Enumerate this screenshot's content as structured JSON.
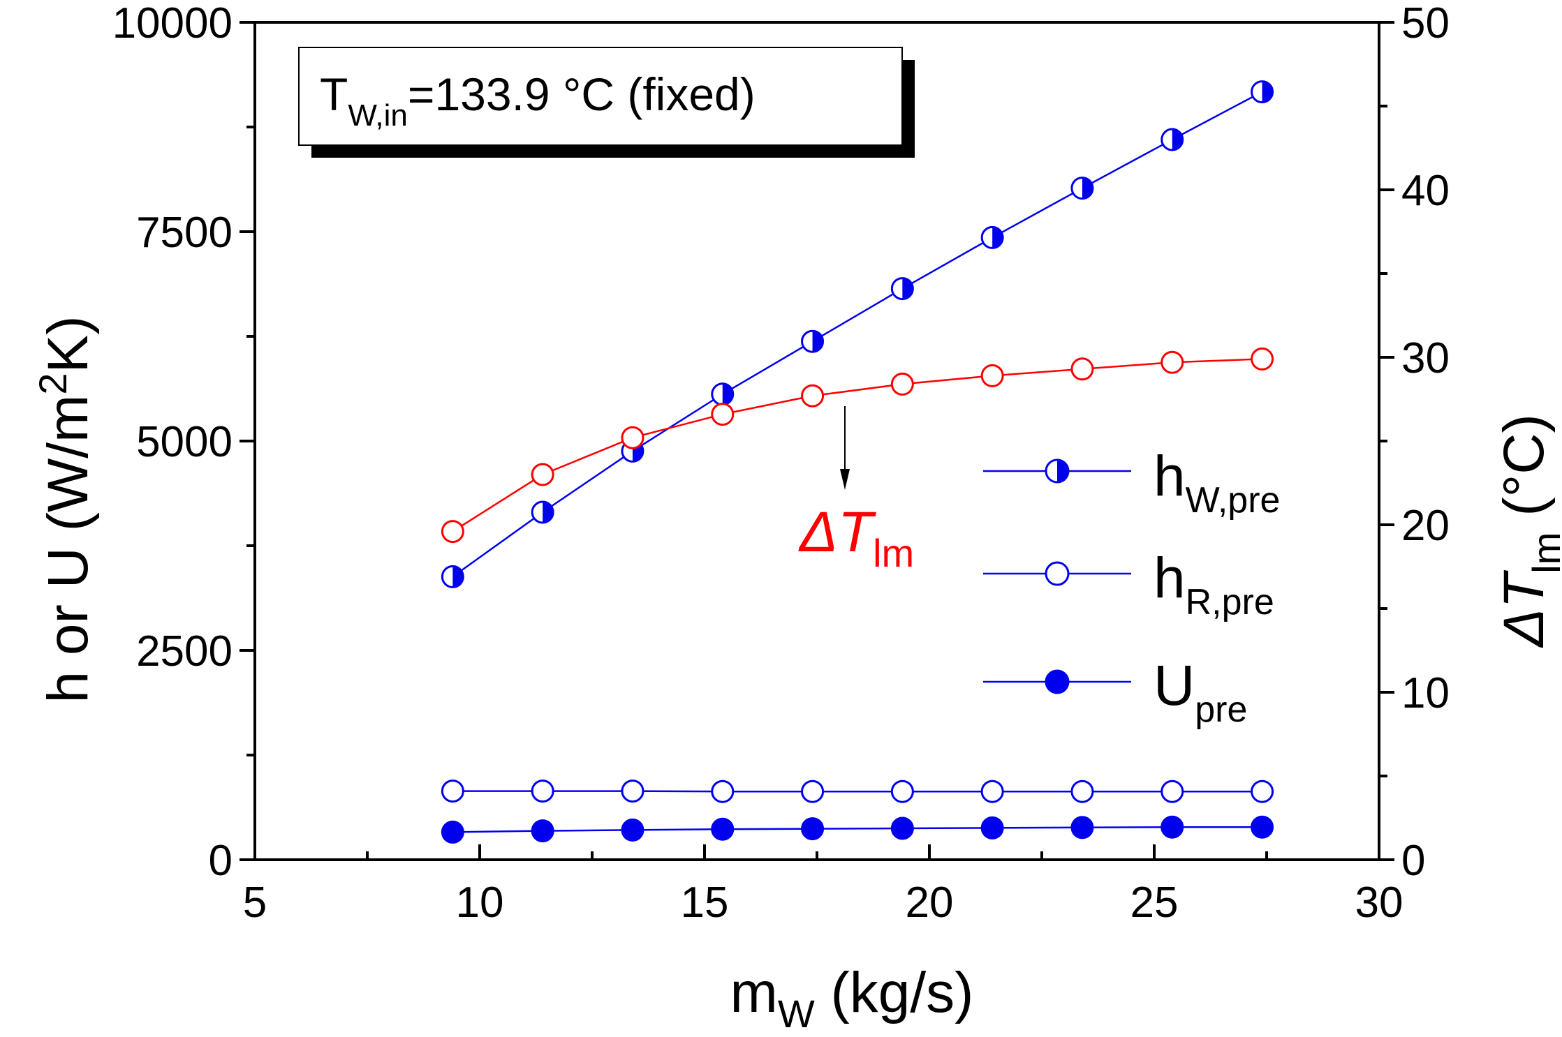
{
  "chart_data": {
    "type": "line",
    "x": [
      9.4,
      11.4,
      13.4,
      15.4,
      17.4,
      19.4,
      21.4,
      23.4,
      25.4,
      27.4
    ],
    "xlim": [
      5,
      30
    ],
    "xticks": [
      5,
      10,
      15,
      20,
      25,
      30
    ],
    "ylim": [
      0,
      10000
    ],
    "yticks": [
      0,
      2500,
      5000,
      7500,
      10000
    ],
    "y2lim": [
      0,
      50
    ],
    "y2ticks": [
      0,
      10,
      20,
      30,
      40,
      50
    ],
    "xlabel": {
      "main": "m",
      "sub": "W",
      "rest": " (kg/s)"
    },
    "ylabel": {
      "pre": "h or U (W/m",
      "sup": "2",
      "post": "K)"
    },
    "y2label": {
      "pre": "ΔT",
      "sub": "lm",
      "post": " (°C)"
    },
    "annotation": {
      "box": {
        "main": "T",
        "sub": "W,in",
        "rest": "=133.9 °C (fixed)"
      },
      "arrow_label": {
        "main": "ΔT",
        "sub": "lm"
      }
    },
    "series": [
      {
        "key": "hw",
        "name": "h",
        "name_sub": "W,pre",
        "axis": "left",
        "marker": "half-filled",
        "color": "#0000ee",
        "values": [
          3380,
          4150,
          4880,
          5560,
          6190,
          6820,
          7430,
          8020,
          8600,
          9170
        ]
      },
      {
        "key": "hr",
        "name": "h",
        "name_sub": "R,pre",
        "axis": "left",
        "marker": "open",
        "color": "#0000ee",
        "values": [
          820,
          820,
          820,
          815,
          815,
          815,
          815,
          815,
          815,
          815
        ]
      },
      {
        "key": "u",
        "name": "U",
        "name_sub": "pre",
        "axis": "left",
        "marker": "filled",
        "color": "#0000ee",
        "values": [
          330,
          345,
          355,
          365,
          370,
          375,
          380,
          385,
          390,
          390
        ]
      },
      {
        "key": "dt",
        "name": "ΔT",
        "name_sub": "lm",
        "axis": "right",
        "marker": "open",
        "color": "#ff0000",
        "values": [
          19.6,
          23.0,
          25.2,
          26.6,
          27.7,
          28.4,
          28.9,
          29.3,
          29.7,
          29.9
        ]
      }
    ],
    "legend": {
      "placement": "middle-right",
      "order": [
        "hw",
        "hr",
        "u"
      ]
    }
  }
}
